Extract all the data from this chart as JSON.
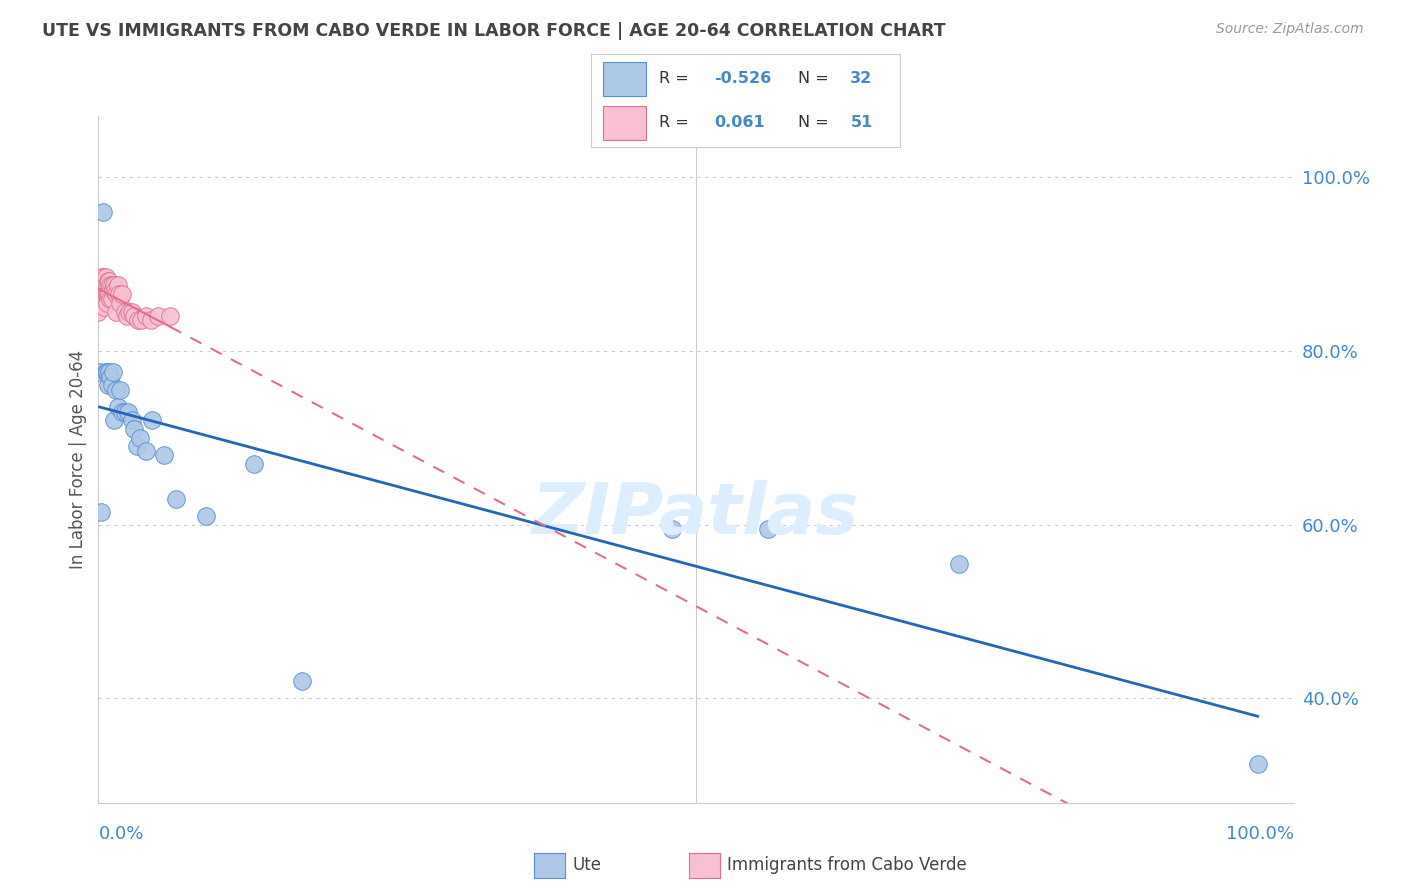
{
  "title": "UTE VS IMMIGRANTS FROM CABO VERDE IN LABOR FORCE | AGE 20-64 CORRELATION CHART",
  "source": "Source: ZipAtlas.com",
  "ylabel": "In Labor Force | Age 20-64",
  "legend_bottom_labels": [
    "Ute",
    "Immigrants from Cabo Verde"
  ],
  "ute_R": -0.526,
  "ute_N": 32,
  "cabo_R": 0.061,
  "cabo_N": 51,
  "ute_color": "#adc8e8",
  "ute_edge_color": "#5590cc",
  "ute_line_color": "#2266bb",
  "cabo_color": "#f8c0d0",
  "cabo_edge_color": "#dd7090",
  "cabo_line_color": "#dd7090",
  "background_color": "#ffffff",
  "grid_color": "#cccccc",
  "title_color": "#444444",
  "source_color": "#999999",
  "right_axis_color": "#4488cc",
  "legend_border_color": "#cccccc",
  "ute_scatter_x": [
    0.001,
    0.002,
    0.004,
    0.006,
    0.007,
    0.008,
    0.009,
    0.01,
    0.011,
    0.012,
    0.013,
    0.015,
    0.016,
    0.018,
    0.02,
    0.022,
    0.025,
    0.028,
    0.03,
    0.032,
    0.035,
    0.04,
    0.045,
    0.055,
    0.065,
    0.09,
    0.13,
    0.17,
    0.48,
    0.56,
    0.72,
    0.97
  ],
  "ute_scatter_y": [
    0.775,
    0.615,
    0.96,
    0.775,
    0.775,
    0.76,
    0.775,
    0.77,
    0.76,
    0.775,
    0.72,
    0.755,
    0.735,
    0.755,
    0.73,
    0.73,
    0.73,
    0.72,
    0.71,
    0.69,
    0.7,
    0.685,
    0.72,
    0.68,
    0.63,
    0.61,
    0.67,
    0.42,
    0.595,
    0.595,
    0.555,
    0.325
  ],
  "cabo_scatter_x": [
    0.0,
    0.0,
    0.0,
    0.0,
    0.0,
    0.0,
    0.001,
    0.001,
    0.001,
    0.002,
    0.002,
    0.003,
    0.003,
    0.004,
    0.004,
    0.005,
    0.005,
    0.005,
    0.006,
    0.006,
    0.007,
    0.007,
    0.007,
    0.008,
    0.008,
    0.009,
    0.009,
    0.01,
    0.01,
    0.011,
    0.011,
    0.012,
    0.013,
    0.014,
    0.015,
    0.015,
    0.016,
    0.017,
    0.018,
    0.02,
    0.022,
    0.024,
    0.026,
    0.028,
    0.03,
    0.033,
    0.036,
    0.04,
    0.044,
    0.05,
    0.06
  ],
  "cabo_scatter_y": [
    0.88,
    0.875,
    0.865,
    0.86,
    0.855,
    0.845,
    0.875,
    0.865,
    0.855,
    0.875,
    0.865,
    0.885,
    0.87,
    0.885,
    0.865,
    0.875,
    0.865,
    0.85,
    0.885,
    0.865,
    0.875,
    0.865,
    0.855,
    0.88,
    0.865,
    0.88,
    0.865,
    0.875,
    0.86,
    0.875,
    0.86,
    0.87,
    0.875,
    0.87,
    0.865,
    0.845,
    0.875,
    0.865,
    0.855,
    0.865,
    0.845,
    0.84,
    0.845,
    0.845,
    0.84,
    0.835,
    0.835,
    0.84,
    0.835,
    0.84,
    0.84
  ],
  "xlim": [
    0.0,
    1.0
  ],
  "ylim": [
    0.28,
    1.07
  ],
  "right_yticks": [
    0.4,
    0.6,
    0.8,
    1.0
  ],
  "right_ytick_labels": [
    "40.0%",
    "60.0%",
    "80.0%",
    "100.0%"
  ],
  "watermark_text": "ZIPatlas",
  "watermark_color": "#ddeeff"
}
